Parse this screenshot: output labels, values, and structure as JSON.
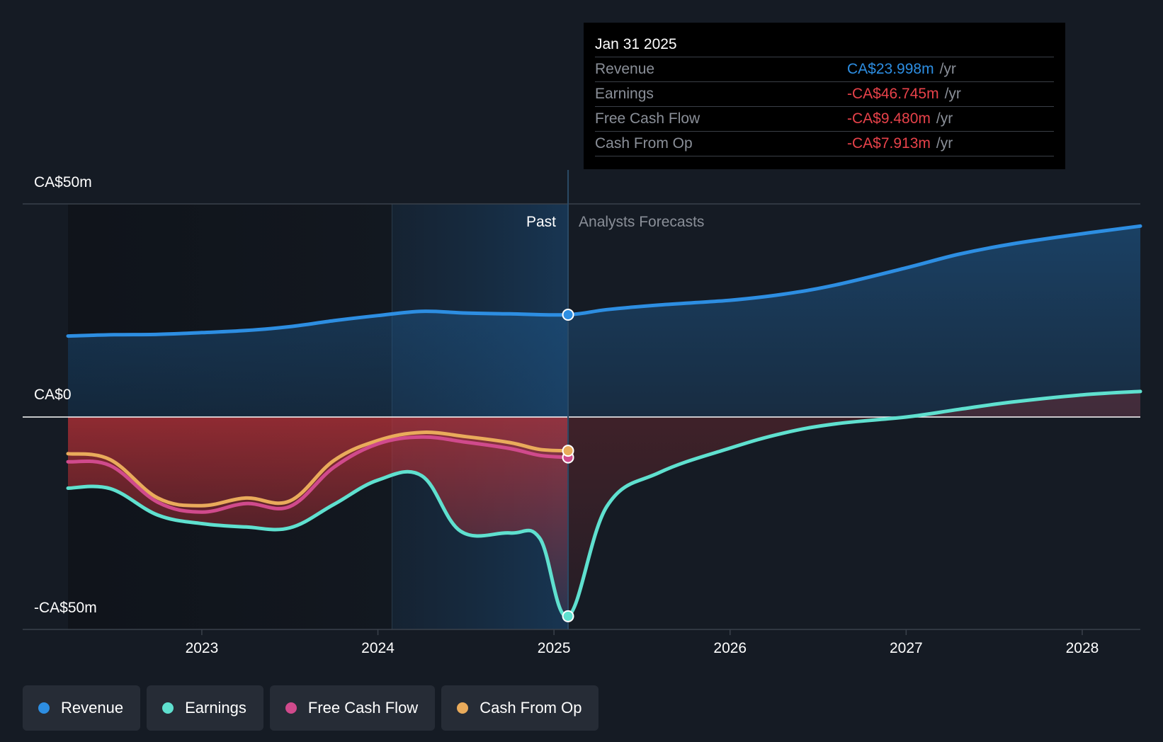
{
  "chart_data": {
    "type": "line",
    "y_axis": {
      "ticks": [
        "CA$50m",
        "CA$0",
        "-CA$50m"
      ],
      "ylim": [
        -50,
        50
      ],
      "unit": "CA$m"
    },
    "x_axis": {
      "ticks": [
        "2023",
        "2024",
        "2025",
        "2026",
        "2027",
        "2028"
      ],
      "xlim": [
        2022.24,
        2028.33
      ]
    },
    "regions": {
      "past_label": "Past",
      "forecast_label": "Analysts Forecasts",
      "divider_x": 2025.08,
      "highlight_start_x": 2024.08
    },
    "series": [
      {
        "name": "Revenue",
        "color": "#2d8ee2",
        "points": [
          [
            2022.24,
            19.0
          ],
          [
            2022.5,
            19.3
          ],
          [
            2022.75,
            19.4
          ],
          [
            2023.0,
            19.8
          ],
          [
            2023.25,
            20.3
          ],
          [
            2023.5,
            21.2
          ],
          [
            2023.75,
            22.6
          ],
          [
            2024.0,
            23.8
          ],
          [
            2024.25,
            24.8
          ],
          [
            2024.5,
            24.4
          ],
          [
            2024.75,
            24.2
          ],
          [
            2025.08,
            24.0
          ],
          [
            2025.3,
            25.2
          ],
          [
            2025.6,
            26.3
          ],
          [
            2026.0,
            27.4
          ],
          [
            2026.3,
            28.8
          ],
          [
            2026.6,
            31.0
          ],
          [
            2027.0,
            35.0
          ],
          [
            2027.3,
            38.2
          ],
          [
            2027.6,
            40.6
          ],
          [
            2028.0,
            43.0
          ],
          [
            2028.33,
            44.8
          ]
        ]
      },
      {
        "name": "Earnings",
        "color": "#5fe0cf",
        "points": [
          [
            2022.24,
            -16.7
          ],
          [
            2022.48,
            -16.8
          ],
          [
            2022.75,
            -23.0
          ],
          [
            2023.0,
            -25.0
          ],
          [
            2023.25,
            -25.8
          ],
          [
            2023.5,
            -26.0
          ],
          [
            2023.75,
            -20.5
          ],
          [
            2024.0,
            -14.8
          ],
          [
            2024.25,
            -13.8
          ],
          [
            2024.47,
            -26.8
          ],
          [
            2024.75,
            -27.2
          ],
          [
            2024.92,
            -28.5
          ],
          [
            2025.08,
            -46.745
          ],
          [
            2025.3,
            -21.0
          ],
          [
            2025.6,
            -13.0
          ],
          [
            2026.0,
            -7.3
          ],
          [
            2026.3,
            -3.8
          ],
          [
            2026.6,
            -1.6
          ],
          [
            2027.0,
            0.0
          ],
          [
            2027.3,
            1.8
          ],
          [
            2027.6,
            3.5
          ],
          [
            2028.0,
            5.2
          ],
          [
            2028.33,
            6.0
          ]
        ]
      },
      {
        "name": "Free Cash Flow",
        "color": "#d04a8c",
        "points": [
          [
            2022.24,
            -10.5
          ],
          [
            2022.48,
            -11.4
          ],
          [
            2022.75,
            -20.0
          ],
          [
            2023.0,
            -22.3
          ],
          [
            2023.25,
            -20.3
          ],
          [
            2023.5,
            -21.0
          ],
          [
            2023.75,
            -11.8
          ],
          [
            2024.0,
            -6.3
          ],
          [
            2024.25,
            -4.7
          ],
          [
            2024.5,
            -5.9
          ],
          [
            2024.75,
            -7.4
          ],
          [
            2024.92,
            -9.0
          ],
          [
            2025.08,
            -9.48
          ]
        ]
      },
      {
        "name": "Cash From Op",
        "color": "#e9ab5b",
        "points": [
          [
            2022.24,
            -8.6
          ],
          [
            2022.48,
            -10.0
          ],
          [
            2022.75,
            -19.0
          ],
          [
            2023.0,
            -20.8
          ],
          [
            2023.25,
            -19.0
          ],
          [
            2023.5,
            -19.7
          ],
          [
            2023.75,
            -10.2
          ],
          [
            2024.0,
            -5.5
          ],
          [
            2024.25,
            -3.6
          ],
          [
            2024.5,
            -4.6
          ],
          [
            2024.75,
            -6.0
          ],
          [
            2024.92,
            -7.6
          ],
          [
            2025.08,
            -7.913
          ]
        ]
      }
    ]
  },
  "tooltip": {
    "date": "Jan 31 2025",
    "rows": [
      {
        "label": "Revenue",
        "value": "CA$23.998m",
        "unit": "/yr",
        "color": "#2d8ee2"
      },
      {
        "label": "Earnings",
        "value": "-CA$46.745m",
        "unit": "/yr",
        "color": "#e8424a"
      },
      {
        "label": "Free Cash Flow",
        "value": "-CA$9.480m",
        "unit": "/yr",
        "color": "#e8424a"
      },
      {
        "label": "Cash From Op",
        "value": "-CA$7.913m",
        "unit": "/yr",
        "color": "#e8424a"
      }
    ]
  },
  "legend": [
    {
      "label": "Revenue",
      "color": "#2d8ee2"
    },
    {
      "label": "Earnings",
      "color": "#5fe0cf"
    },
    {
      "label": "Free Cash Flow",
      "color": "#d04a8c"
    },
    {
      "label": "Cash From Op",
      "color": "#e9ab5b"
    }
  ]
}
